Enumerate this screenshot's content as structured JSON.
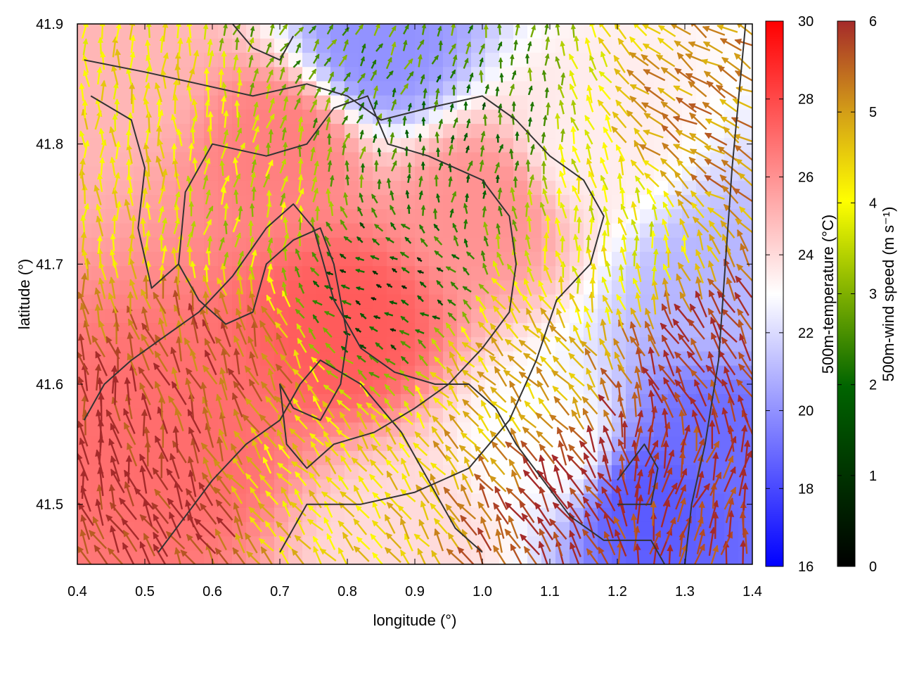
{
  "chart_data": {
    "type": "heatmap",
    "xlabel": "longitude (°)",
    "ylabel": "latitude (°)",
    "xlim": [
      0.4,
      1.4
    ],
    "ylim": [
      41.45,
      41.9
    ],
    "xticks": [
      "0.4",
      "0.5",
      "0.6",
      "0.7",
      "0.8",
      "0.9",
      "1.0",
      "1.1",
      "1.2",
      "1.3",
      "1.4"
    ],
    "yticks": [
      "41.5",
      "41.6",
      "41.7",
      "41.8",
      "41.9"
    ],
    "temperature_colorbar": {
      "label": "500m-temperature (°C)",
      "range": [
        16,
        30
      ],
      "ticks": [
        "16",
        "18",
        "20",
        "22",
        "24",
        "26",
        "28",
        "30"
      ],
      "colors": [
        "#0000ff",
        "#ffffff",
        "#ff0000"
      ]
    },
    "wind_colorbar": {
      "label": "500m-wind speed (m s⁻¹)",
      "range": [
        0,
        6
      ],
      "ticks": [
        "0",
        "1",
        "2",
        "3",
        "4",
        "5",
        "6"
      ],
      "colors": [
        "#000000",
        "#006400",
        "#7fb000",
        "#ffff00",
        "#d4a017",
        "#a52a2a"
      ]
    },
    "temperature_field": {
      "description_points": [
        {
          "lon": 0.8,
          "lat": 41.65,
          "temp": 27.5
        },
        {
          "lon": 0.55,
          "lat": 41.55,
          "temp": 27
        },
        {
          "lon": 0.7,
          "lat": 41.8,
          "temp": 26.5
        },
        {
          "lon": 1.0,
          "lat": 41.75,
          "temp": 26
        },
        {
          "lon": 1.25,
          "lat": 41.5,
          "temp": 18.5
        },
        {
          "lon": 1.35,
          "lat": 41.55,
          "temp": 19
        },
        {
          "lon": 0.85,
          "lat": 41.88,
          "temp": 20
        },
        {
          "lon": 1.35,
          "lat": 41.68,
          "temp": 21
        },
        {
          "lon": 1.15,
          "lat": 41.8,
          "temp": 23.5
        },
        {
          "lon": 1.1,
          "lat": 41.55,
          "temp": 23
        },
        {
          "lon": 0.45,
          "lat": 41.85,
          "temp": 25
        },
        {
          "lon": 0.9,
          "lat": 41.47,
          "temp": 24
        }
      ]
    },
    "wind_regions": [
      {
        "lon": 0.45,
        "lat": 41.55,
        "speed": 6,
        "dir": 350
      },
      {
        "lon": 0.5,
        "lat": 41.48,
        "speed": 6,
        "dir": 330
      },
      {
        "lon": 0.6,
        "lat": 41.62,
        "speed": 5.5,
        "dir": 340
      },
      {
        "lon": 0.75,
        "lat": 41.52,
        "speed": 4,
        "dir": 320
      },
      {
        "lon": 0.85,
        "lat": 41.68,
        "speed": 1,
        "dir": 300
      },
      {
        "lon": 0.95,
        "lat": 41.8,
        "speed": 1.5,
        "dir": 10
      },
      {
        "lon": 1.05,
        "lat": 41.6,
        "speed": 4.5,
        "dir": 320
      },
      {
        "lon": 1.15,
        "lat": 41.52,
        "speed": 6,
        "dir": 330
      },
      {
        "lon": 1.28,
        "lat": 41.52,
        "speed": 6,
        "dir": 20
      },
      {
        "lon": 1.35,
        "lat": 41.62,
        "speed": 6,
        "dir": 330
      },
      {
        "lon": 1.35,
        "lat": 41.8,
        "speed": 5,
        "dir": 300
      },
      {
        "lon": 1.2,
        "lat": 41.72,
        "speed": 3.5,
        "dir": 350
      },
      {
        "lon": 0.65,
        "lat": 41.75,
        "speed": 3,
        "dir": 10
      },
      {
        "lon": 0.5,
        "lat": 41.8,
        "speed": 4,
        "dir": 0
      },
      {
        "lon": 0.8,
        "lat": 41.88,
        "speed": 2,
        "dir": 30
      }
    ],
    "contours": [
      [
        [
          0.41,
          41.87
        ],
        [
          0.5,
          41.86
        ],
        [
          0.58,
          41.85
        ],
        [
          0.66,
          41.84
        ],
        [
          0.74,
          41.85
        ],
        [
          0.8,
          41.84
        ],
        [
          0.85,
          41.82
        ],
        [
          0.92,
          41.83
        ],
        [
          1.0,
          41.84
        ],
        [
          1.05,
          41.82
        ],
        [
          1.1,
          41.79
        ],
        [
          1.15,
          41.77
        ],
        [
          1.18,
          41.74
        ],
        [
          1.16,
          41.7
        ],
        [
          1.11,
          41.67
        ],
        [
          1.08,
          41.62
        ],
        [
          1.04,
          41.57
        ],
        [
          0.98,
          41.53
        ],
        [
          0.9,
          41.51
        ],
        [
          0.82,
          41.5
        ],
        [
          0.74,
          41.5
        ],
        [
          0.7,
          41.46
        ]
      ],
      [
        [
          0.42,
          41.84
        ],
        [
          0.48,
          41.82
        ],
        [
          0.5,
          41.78
        ],
        [
          0.49,
          41.73
        ],
        [
          0.51,
          41.68
        ],
        [
          0.55,
          41.7
        ],
        [
          0.58,
          41.67
        ],
        [
          0.62,
          41.65
        ],
        [
          0.66,
          41.66
        ],
        [
          0.68,
          41.7
        ],
        [
          0.72,
          41.72
        ],
        [
          0.76,
          41.73
        ],
        [
          0.78,
          41.7
        ],
        [
          0.8,
          41.64
        ],
        [
          0.79,
          41.6
        ],
        [
          0.76,
          41.57
        ],
        [
          0.72,
          41.58
        ],
        [
          0.7,
          41.6
        ],
        [
          0.71,
          41.55
        ],
        [
          0.74,
          41.53
        ],
        [
          0.78,
          41.55
        ],
        [
          0.84,
          41.56
        ],
        [
          0.9,
          41.58
        ],
        [
          0.95,
          41.6
        ],
        [
          1.0,
          41.63
        ],
        [
          1.04,
          41.66
        ],
        [
          1.05,
          41.7
        ],
        [
          1.04,
          41.74
        ],
        [
          1.0,
          41.77
        ],
        [
          0.96,
          41.78
        ],
        [
          0.92,
          41.79
        ],
        [
          0.86,
          41.8
        ],
        [
          0.83,
          41.84
        ],
        [
          0.78,
          41.83
        ],
        [
          0.74,
          41.8
        ],
        [
          0.68,
          41.79
        ],
        [
          0.6,
          41.8
        ],
        [
          0.56,
          41.76
        ],
        [
          0.55,
          41.7
        ]
      ],
      [
        [
          0.41,
          41.57
        ],
        [
          0.44,
          41.6
        ],
        [
          0.48,
          41.62
        ],
        [
          0.53,
          41.64
        ],
        [
          0.58,
          41.66
        ],
        [
          0.63,
          41.69
        ],
        [
          0.68,
          41.73
        ],
        [
          0.72,
          41.75
        ],
        [
          0.75,
          41.73
        ],
        [
          0.78,
          41.67
        ],
        [
          0.82,
          41.63
        ],
        [
          0.87,
          41.61
        ],
        [
          0.93,
          41.6
        ],
        [
          0.98,
          41.6
        ],
        [
          1.02,
          41.58
        ],
        [
          1.05,
          41.55
        ],
        [
          1.09,
          41.52
        ],
        [
          1.13,
          41.49
        ],
        [
          1.18,
          41.47
        ],
        [
          1.25,
          41.47
        ],
        [
          1.27,
          41.45
        ]
      ],
      [
        [
          0.52,
          41.46
        ],
        [
          0.56,
          41.49
        ],
        [
          0.6,
          41.52
        ],
        [
          0.65,
          41.55
        ],
        [
          0.7,
          41.57
        ],
        [
          0.73,
          41.6
        ],
        [
          0.76,
          41.62
        ],
        [
          0.82,
          41.6
        ],
        [
          0.88,
          41.56
        ],
        [
          0.92,
          41.52
        ],
        [
          0.96,
          41.48
        ],
        [
          1.0,
          41.46
        ]
      ],
      [
        [
          1.2,
          41.5
        ],
        [
          1.25,
          41.5
        ],
        [
          1.26,
          41.53
        ],
        [
          1.24,
          41.55
        ],
        [
          1.2,
          41.52
        ]
      ],
      [
        [
          1.3,
          41.45
        ],
        [
          1.31,
          41.5
        ],
        [
          1.33,
          41.55
        ],
        [
          1.35,
          41.62
        ],
        [
          1.36,
          41.7
        ],
        [
          1.37,
          41.78
        ],
        [
          1.38,
          41.84
        ],
        [
          1.39,
          41.9
        ]
      ],
      [
        [
          0.63,
          41.9
        ],
        [
          0.66,
          41.88
        ],
        [
          0.7,
          41.87
        ],
        [
          0.72,
          41.89
        ]
      ]
    ]
  }
}
